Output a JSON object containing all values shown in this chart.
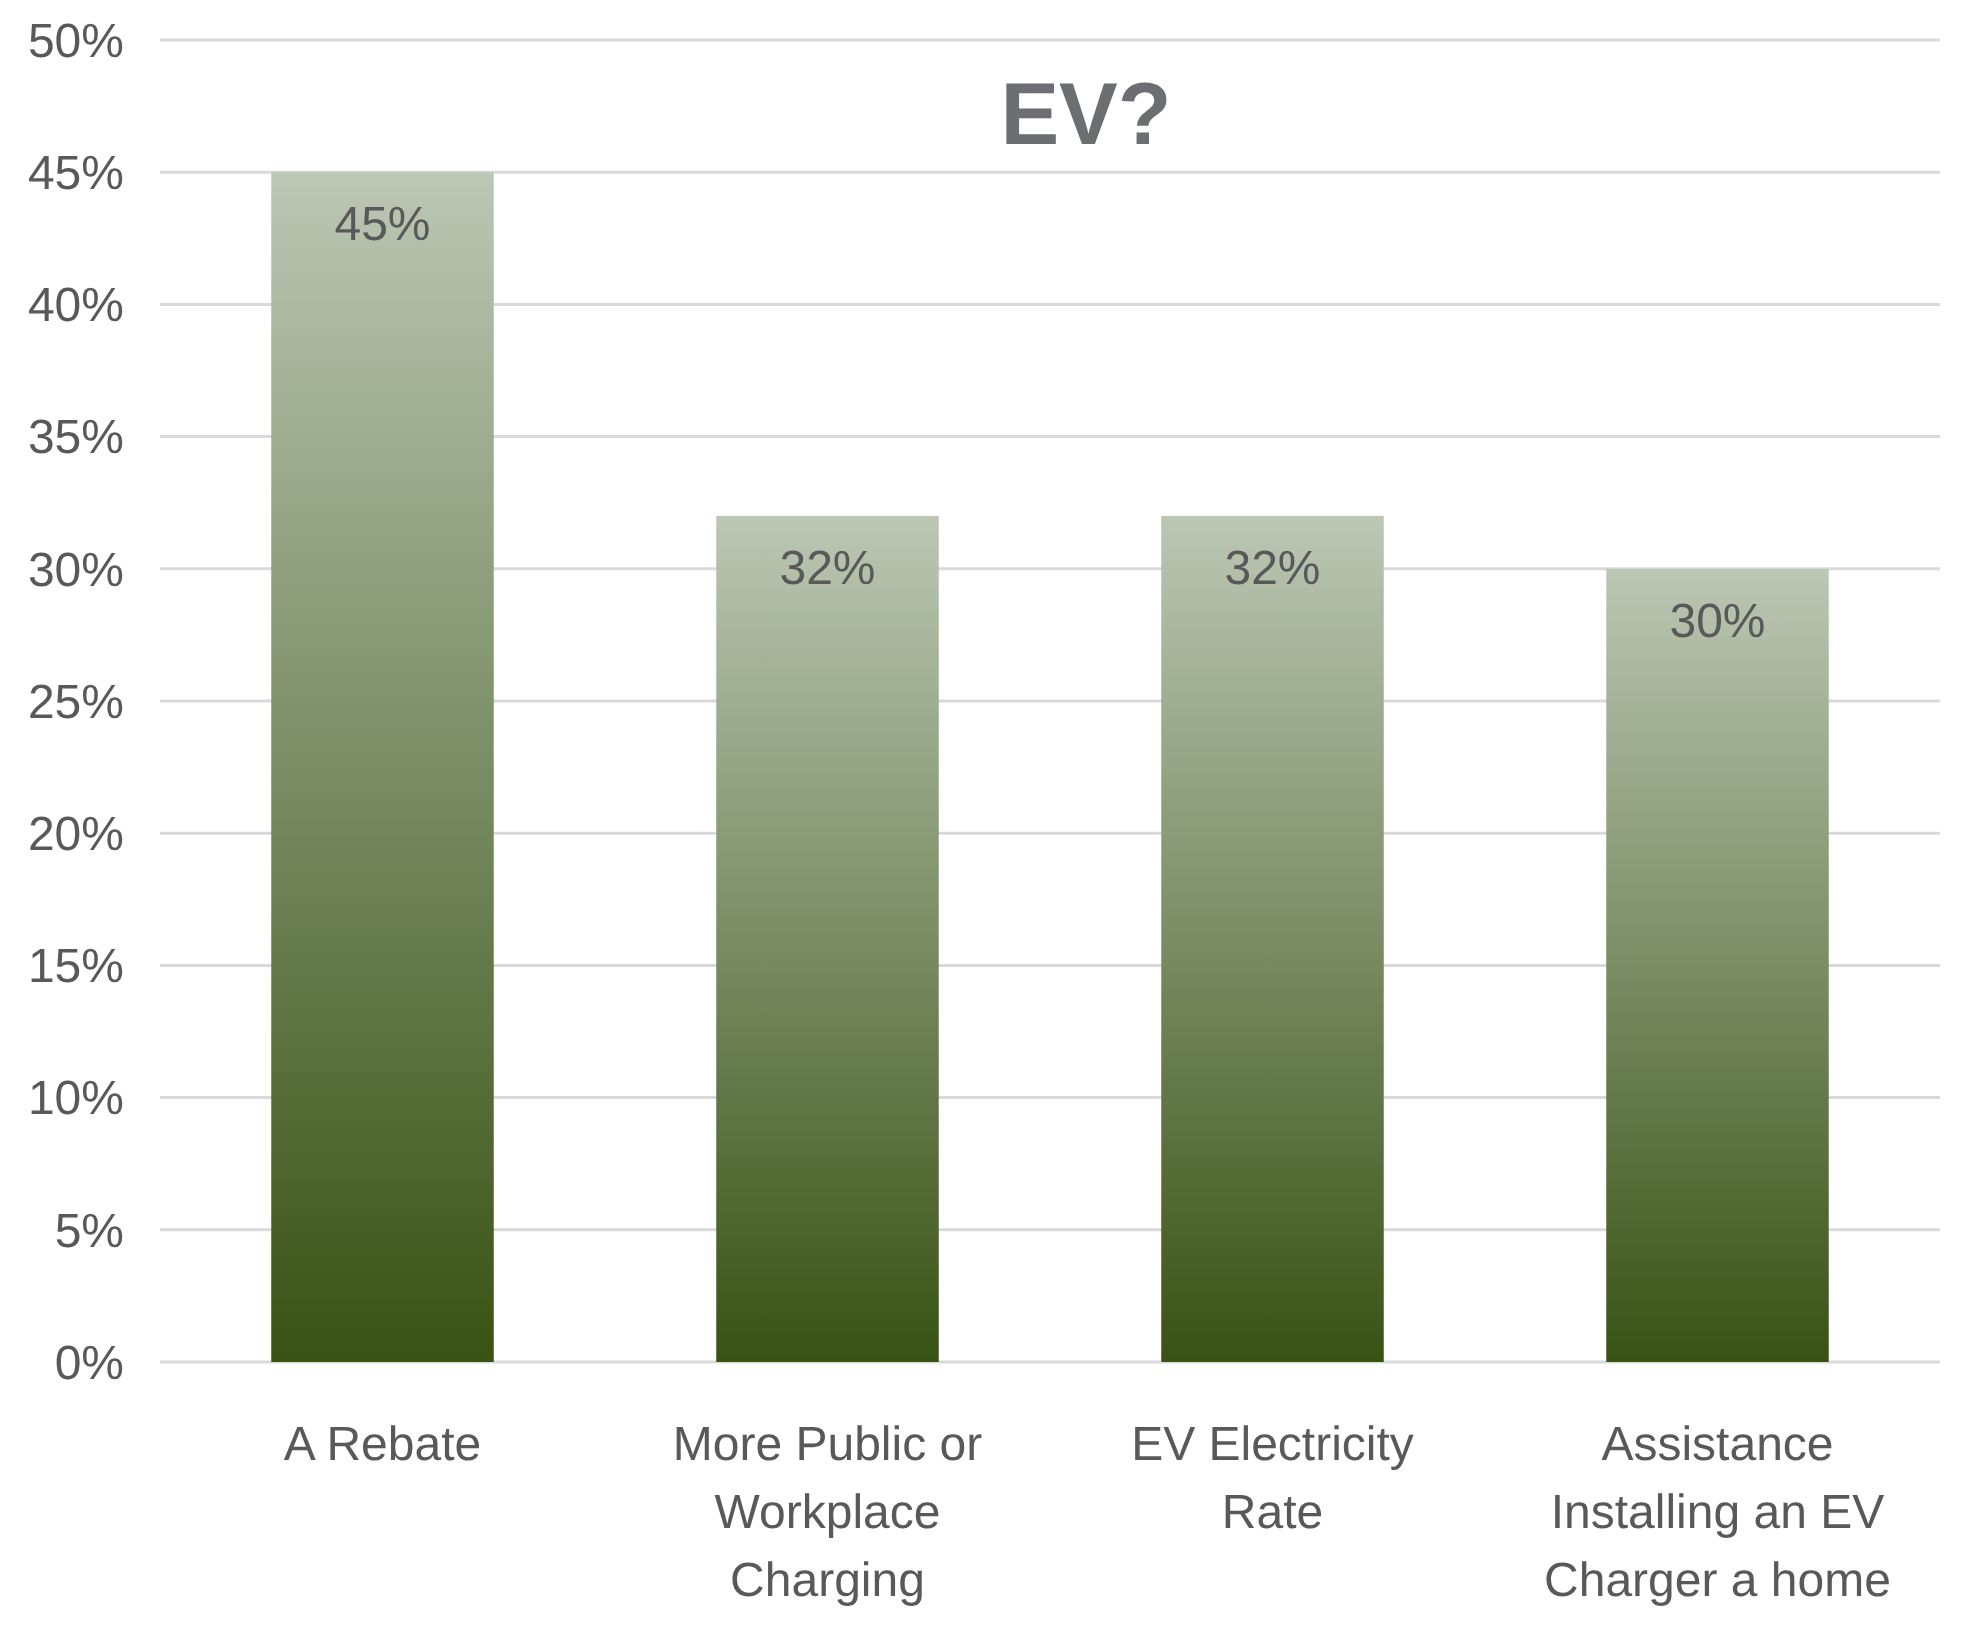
{
  "chart_data": {
    "type": "bar",
    "title": "EV?",
    "categories": [
      "A Rebate",
      "More Public or Workplace Charging",
      "EV Electricity Rate",
      "Assistance Installing an EV Charger a home"
    ],
    "values": [
      45,
      32,
      32,
      30
    ],
    "color": "#bcc7b4",
    "value_labels": [
      "45%",
      "32%",
      "32%",
      "30%"
    ],
    "ylim": [
      0,
      50
    ],
    "yticks": [
      {
        "value": 0,
        "label": "0%"
      },
      {
        "value": 5,
        "label": "5%"
      },
      {
        "value": 10,
        "label": "10%"
      },
      {
        "value": 15,
        "label": "15%"
      },
      {
        "value": 20,
        "label": "20%"
      },
      {
        "value": 25,
        "label": "25%"
      },
      {
        "value": 30,
        "label": "30%"
      },
      {
        "value": 35,
        "label": "35%"
      },
      {
        "value": 40,
        "label": "40%"
      },
      {
        "value": 45,
        "label": "45%"
      },
      {
        "value": 50,
        "label": "50%"
      }
    ],
    "grid": "y"
  }
}
